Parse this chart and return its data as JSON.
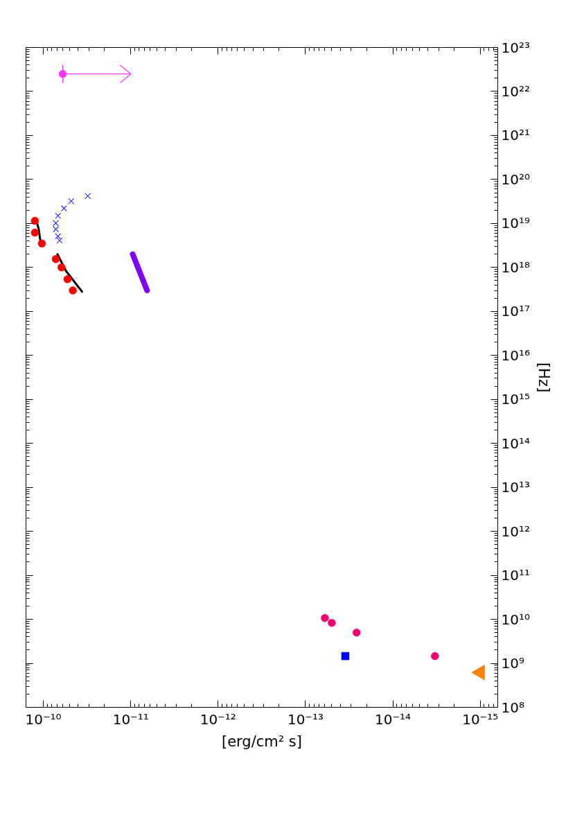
{
  "chart_data": {
    "type": "scatter",
    "xlabel": "[erg/cm² s]",
    "ylabel": "[Hz]",
    "xlim": [
      1.58e-10,
      6.3e-16
    ],
    "ylim": [
      100000000.0,
      1e+23
    ],
    "log": "xy",
    "grid": false,
    "yticks": [
      {
        "value": 100000000.0,
        "label": "10⁸"
      },
      {
        "value": 1000000000.0,
        "label": "10⁹"
      },
      {
        "value": 10000000000.0,
        "label": "10¹⁰"
      },
      {
        "value": 100000000000.0,
        "label": "10¹¹"
      },
      {
        "value": 1000000000000.0,
        "label": "10¹²"
      },
      {
        "value": 10000000000000.0,
        "label": "10¹³"
      },
      {
        "value": 100000000000000.0,
        "label": "10¹⁴"
      },
      {
        "value": 1000000000000000.0,
        "label": "10¹⁵"
      },
      {
        "value": 1e+16,
        "label": "10¹⁶"
      },
      {
        "value": 1e+17,
        "label": "10¹⁷"
      },
      {
        "value": 1e+18,
        "label": "10¹⁸"
      },
      {
        "value": 1e+19,
        "label": "10¹⁹"
      },
      {
        "value": 1e+20,
        "label": "10²⁰"
      },
      {
        "value": 1e+21,
        "label": "10²¹"
      },
      {
        "value": 1e+22,
        "label": "10²²"
      },
      {
        "value": 1e+23,
        "label": "10²³"
      }
    ],
    "xticks": [
      {
        "value": 1e-10,
        "label": "10⁻¹⁰"
      },
      {
        "value": 1e-11,
        "label": "10⁻¹¹"
      },
      {
        "value": 1e-12,
        "label": "10⁻¹²"
      },
      {
        "value": 1e-13,
        "label": "10⁻¹³"
      },
      {
        "value": 1e-14,
        "label": "10⁻¹⁴"
      },
      {
        "value": 1e-15,
        "label": "10⁻¹⁵"
      }
    ],
    "series": [
      {
        "marker": "circle",
        "color": "#f5006e",
        "x": [
          6e-14,
          5e-14,
          2.6e-14,
          3.3e-15
        ],
        "values": [
          10700000000.0,
          8300000000.0,
          5000000000.0,
          1460000000.0
        ]
      },
      {
        "marker": "square",
        "color": "#0000ff",
        "x": [
          3.5e-14
        ],
        "values": [
          1460000000.0
        ]
      },
      {
        "marker": "triangle",
        "color": "#ff8000",
        "x": [
          1e-15
        ],
        "values": [
          620000000.0
        ]
      },
      {
        "type": "line",
        "marker": "none",
        "color": "#8000ff",
        "x": [
          6.5e-12,
          9.5e-12
        ],
        "values": [
          3e+17,
          2e+18
        ]
      },
      {
        "type": "line",
        "marker": "none",
        "color": "#000000",
        "x": [
          3.6e-11,
          5.5e-11,
          6.9e-11
        ],
        "values": [
          2.8e+17,
          8.3e+17,
          2e+18
        ]
      },
      {
        "type": "line",
        "marker": "none",
        "color": "#000000",
        "x": [
          1.07e-10,
          1.13e-10,
          1.2e-10
        ],
        "values": [
          3.5e+18,
          7.4e+18,
          1.15e+19
        ]
      },
      {
        "marker": "circle",
        "color": "#ff0000",
        "x": [
          4.6e-11,
          5.3e-11,
          6.2e-11,
          7.2e-11,
          1.04e-10,
          1.25e-10,
          1.25e-10
        ],
        "values": [
          3e+17,
          5.4e+17,
          1e+18,
          1.55e+18,
          3.5e+18,
          6.2e+18,
          1.15e+19
        ]
      },
      {
        "marker": "cross",
        "color": "#3333ff",
        "x": [
          6.5e-11,
          6.8e-11,
          7.2e-11,
          7.2e-11,
          6.8e-11,
          5.8e-11,
          4.8e-11,
          3.1e-11
        ],
        "values": [
          4.1e+18,
          5.1e+18,
          7.4e+18,
          1.02e+19,
          1.5e+19,
          2.2e+19,
          3.2e+19,
          4.2e+19
        ]
      },
      {
        "marker": "circle",
        "color": "#ff33ff",
        "x": [
          6e-11
        ],
        "values": [
          2.5e+22
        ],
        "xerrors": [
          [
            1e-11,
            6e-11
          ]
        ]
      }
    ]
  }
}
